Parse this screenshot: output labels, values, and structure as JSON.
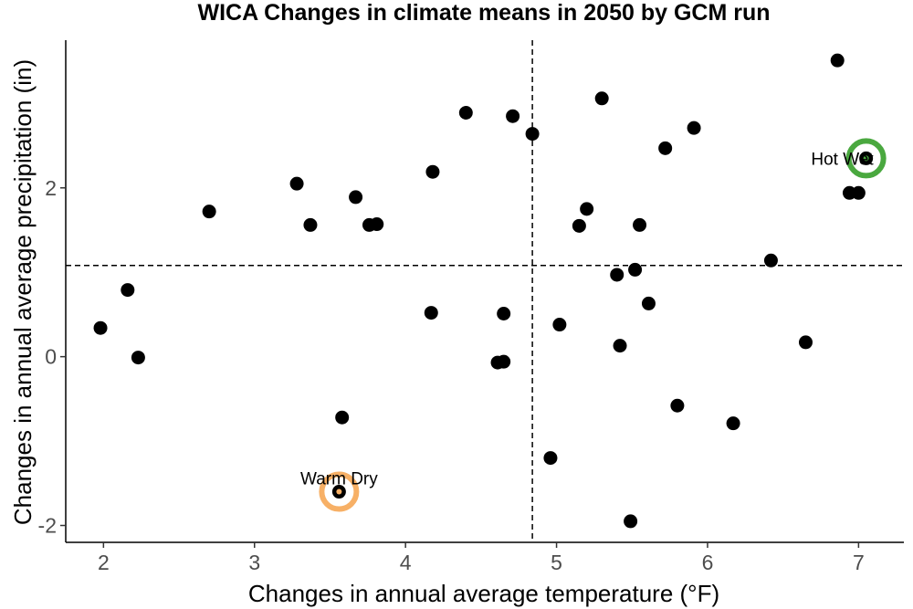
{
  "chart_data": {
    "type": "scatter",
    "title": "WICA Changes in climate means in 2050 by GCM run",
    "xlabel": "Changes in annual average temperature (°F)",
    "ylabel": "Changes in annual average precipitation (in)",
    "xlim": [
      1.75,
      7.3
    ],
    "ylim": [
      -2.2,
      3.75
    ],
    "xticks": [
      2,
      3,
      4,
      5,
      6,
      7
    ],
    "yticks": [
      -2,
      0,
      2
    ],
    "grid": false,
    "reference_lines": {
      "x": 4.84,
      "y": 1.08
    },
    "point_color": "#000000",
    "points": [
      {
        "x": 1.98,
        "y": 0.34
      },
      {
        "x": 2.16,
        "y": 0.79
      },
      {
        "x": 2.23,
        "y": -0.01
      },
      {
        "x": 2.7,
        "y": 1.72
      },
      {
        "x": 3.28,
        "y": 2.05
      },
      {
        "x": 3.37,
        "y": 1.56
      },
      {
        "x": 3.58,
        "y": -0.72
      },
      {
        "x": 3.56,
        "y": -1.6
      },
      {
        "x": 3.67,
        "y": 1.89
      },
      {
        "x": 3.76,
        "y": 1.56
      },
      {
        "x": 3.81,
        "y": 1.57
      },
      {
        "x": 4.17,
        "y": 0.52
      },
      {
        "x": 4.18,
        "y": 2.19
      },
      {
        "x": 4.4,
        "y": 2.89
      },
      {
        "x": 4.61,
        "y": -0.07
      },
      {
        "x": 4.65,
        "y": -0.06
      },
      {
        "x": 4.65,
        "y": 0.51
      },
      {
        "x": 4.71,
        "y": 2.85
      },
      {
        "x": 4.84,
        "y": 2.64
      },
      {
        "x": 4.96,
        "y": -1.2
      },
      {
        "x": 5.02,
        "y": 0.38
      },
      {
        "x": 5.15,
        "y": 1.55
      },
      {
        "x": 5.2,
        "y": 1.75
      },
      {
        "x": 5.3,
        "y": 3.06
      },
      {
        "x": 5.4,
        "y": 0.97
      },
      {
        "x": 5.42,
        "y": 0.13
      },
      {
        "x": 5.49,
        "y": -1.95
      },
      {
        "x": 5.52,
        "y": 1.03
      },
      {
        "x": 5.55,
        "y": 1.56
      },
      {
        "x": 5.61,
        "y": 0.63
      },
      {
        "x": 5.72,
        "y": 2.47
      },
      {
        "x": 5.8,
        "y": -0.58
      },
      {
        "x": 5.91,
        "y": 2.71
      },
      {
        "x": 6.17,
        "y": -0.79
      },
      {
        "x": 6.42,
        "y": 1.14
      },
      {
        "x": 6.65,
        "y": 0.17
      },
      {
        "x": 6.86,
        "y": 3.51
      },
      {
        "x": 6.94,
        "y": 1.94
      },
      {
        "x": 7.0,
        "y": 1.94
      },
      {
        "x": 7.05,
        "y": 2.35
      }
    ],
    "highlights": [
      {
        "label": "Warm Dry",
        "x": 3.56,
        "y": -1.6,
        "color": "#f7b066"
      },
      {
        "label": "Hot Wet",
        "x": 7.05,
        "y": 2.35,
        "color": "#4aa83f"
      }
    ]
  }
}
